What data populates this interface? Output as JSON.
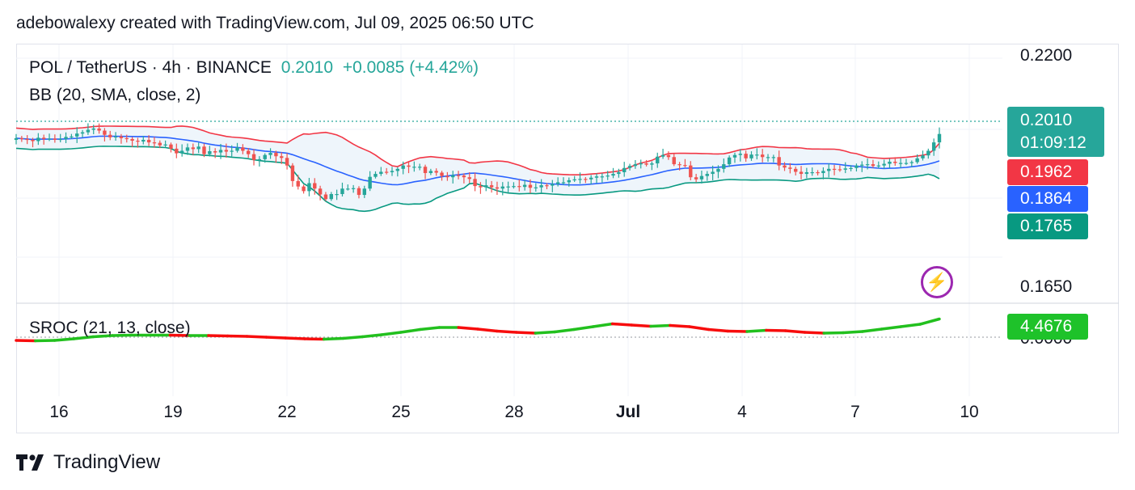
{
  "header": {
    "caption": "adebowalexy created with TradingView.com, Jul 09, 2025 06:50 UTC"
  },
  "legend": {
    "symbol": "POL / TetherUS · 4h · BINANCE",
    "price": "0.2010",
    "change": "+0.0085 (+4.42%)",
    "bb_label": "BB (20, SMA, close, 2)",
    "sroc_label": "SROC (21, 13, close)"
  },
  "price_tags": {
    "last": "0.2010",
    "countdown": "01:09:12",
    "bb_upper": "0.1962",
    "bb_basis": "0.1864",
    "bb_lower": "0.1765",
    "sroc": "4.4676"
  },
  "colors": {
    "up": "#26a69a",
    "down": "#ef5350",
    "basis": "#2962ff",
    "upper": "#f23645",
    "lower": "#089981",
    "band_fill": "#eef5fb",
    "sroc_up": "#22c01e",
    "sroc_down": "#f70d0d",
    "last_tag": "#26a69a",
    "sroc_tag": "#1ec22a"
  },
  "brand": {
    "name": "TradingView",
    "logo_icon": "tradingview-logo-icon",
    "alert_icon": "lightning-icon"
  },
  "chart_data": {
    "type": "candlestick",
    "symbol": "POL / TetherUS",
    "timeframe": "4h",
    "y_axis": {
      "ticks": [
        0.22,
        0.165
      ],
      "tick_labels": [
        "0.2200",
        "0.1650"
      ],
      "ylim": [
        0.1613,
        0.2223
      ]
    },
    "x_axis": {
      "tick_labels": [
        "16",
        "19",
        "22",
        "25",
        "28",
        "Jul",
        "4",
        "7",
        "10"
      ]
    },
    "sroc_axis": {
      "tick_label": "0.0000"
    },
    "last": {
      "price": 0.201,
      "change": 0.0085,
      "change_pct": 4.42
    },
    "bollinger": {
      "period": 20,
      "ma": "SMA",
      "source": "close",
      "stdev": 2,
      "upper_last": 0.1962,
      "basis_last": 0.1864,
      "lower_last": 0.1765
    },
    "sroc": {
      "params": [
        21,
        13
      ],
      "source": "close",
      "last": 4.4676
    },
    "series_close": [
      0.2,
      0.1998,
      0.1996,
      0.1993,
      0.2001,
      0.1998,
      0.1999,
      0.1996,
      0.1998,
      0.2003,
      0.2004,
      0.2011,
      0.2014,
      0.202,
      0.2023,
      0.2018,
      0.2008,
      0.2002,
      0.2004,
      0.2,
      0.1998,
      0.1994,
      0.1992,
      0.1996,
      0.199,
      0.1989,
      0.1983,
      0.1985,
      0.1975,
      0.1964,
      0.197,
      0.1978,
      0.1974,
      0.198,
      0.1962,
      0.1969,
      0.1966,
      0.1972,
      0.1968,
      0.197,
      0.1978,
      0.197,
      0.1962,
      0.1948,
      0.195,
      0.196,
      0.1965,
      0.1957,
      0.1953,
      0.1935,
      0.1898,
      0.1885,
      0.1874,
      0.1893,
      0.188,
      0.1866,
      0.1855,
      0.1867,
      0.1867,
      0.188,
      0.188,
      0.1881,
      0.1865,
      0.188,
      0.1908,
      0.1915,
      0.192,
      0.1919,
      0.1922,
      0.1927,
      0.1935,
      0.1932,
      0.1932,
      0.1932,
      0.1917,
      0.1922,
      0.1918,
      0.191,
      0.1907,
      0.1912,
      0.1911,
      0.1907,
      0.1903,
      0.1886,
      0.1883,
      0.1888,
      0.1883,
      0.188,
      0.1885,
      0.1885,
      0.1886,
      0.1884,
      0.1889,
      0.1882,
      0.1883,
      0.1888,
      0.1887,
      0.1891,
      0.1895,
      0.1895,
      0.19,
      0.1902,
      0.1903,
      0.1902,
      0.1906,
      0.1909,
      0.1909,
      0.1911,
      0.1915,
      0.1919,
      0.1929,
      0.1934,
      0.1938,
      0.194,
      0.1937,
      0.194,
      0.1956,
      0.196,
      0.1955,
      0.1938,
      0.1936,
      0.1935,
      0.1907,
      0.1902,
      0.191,
      0.1915,
      0.192,
      0.1927,
      0.1938,
      0.1954,
      0.196,
      0.1963,
      0.1952,
      0.1961,
      0.1961,
      0.1955,
      0.1955,
      0.1955,
      0.1935,
      0.193,
      0.1927,
      0.192,
      0.1915,
      0.1919,
      0.1919,
      0.1917,
      0.1922,
      0.1927,
      0.1926,
      0.1925,
      0.1928,
      0.1929,
      0.1935,
      0.1937,
      0.1938,
      0.1934,
      0.1935,
      0.1939,
      0.1944,
      0.1941,
      0.1941,
      0.1941,
      0.1943,
      0.1952,
      0.1959,
      0.197,
      0.199,
      0.201
    ],
    "sroc_path": [
      -0.8,
      -0.9,
      -0.8,
      -0.4,
      0.1,
      0.4,
      0.5,
      0.5,
      0.5,
      0.4,
      0.4,
      0.3,
      0.2,
      0.0,
      -0.2,
      -0.4,
      -0.5,
      -0.3,
      0.1,
      0.6,
      1.2,
      1.9,
      2.4,
      2.4,
      2.0,
      1.5,
      1.2,
      1.0,
      1.3,
      1.9,
      2.6,
      3.3,
      3.0,
      2.7,
      2.9,
      2.6,
      1.9,
      1.5,
      1.4,
      1.7,
      1.6,
      1.2,
      1.0,
      1.1,
      1.4,
      2.0,
      2.6,
      3.2,
      4.5
    ]
  }
}
